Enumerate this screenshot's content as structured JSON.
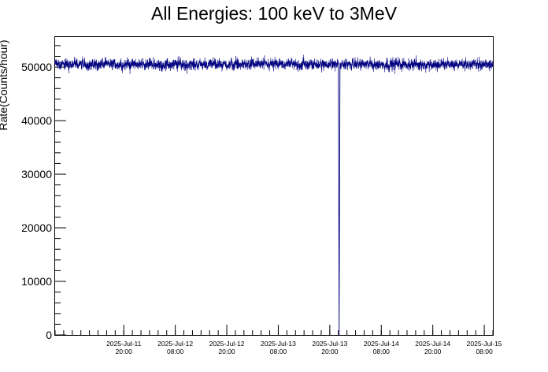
{
  "chart_data": {
    "type": "line",
    "title": "All Energies:  100 keV to 3MeV",
    "ylabel": "Rate(Counts/hour)",
    "xlabel": "",
    "ylim": [
      0,
      55600
    ],
    "xlim": [
      "2025-Jul-11 04:00",
      "2025-Jul-15 10:00"
    ],
    "grid": false,
    "line_color": "#000080",
    "yticks": [
      0,
      10000,
      20000,
      30000,
      40000,
      50000
    ],
    "yticks_minor_step": 2000,
    "xticks": [
      {
        "date": "2025-Jul-11",
        "time": "20:00"
      },
      {
        "date": "2025-Jul-12",
        "time": "08:00"
      },
      {
        "date": "2025-Jul-12",
        "time": "20:00"
      },
      {
        "date": "2025-Jul-13",
        "time": "08:00"
      },
      {
        "date": "2025-Jul-13",
        "time": "20:00"
      },
      {
        "date": "2025-Jul-14",
        "time": "08:00"
      },
      {
        "date": "2025-Jul-14",
        "time": "20:00"
      },
      {
        "date": "2025-Jul-15",
        "time": "08:00"
      }
    ],
    "series": [
      {
        "baseline_mean": 50500,
        "fluctuation": 700,
        "dips": [
          {
            "date": "2025-Jul-13 22:10",
            "values": [
              0,
              8000,
              16500,
              0
            ]
          }
        ]
      }
    ]
  }
}
